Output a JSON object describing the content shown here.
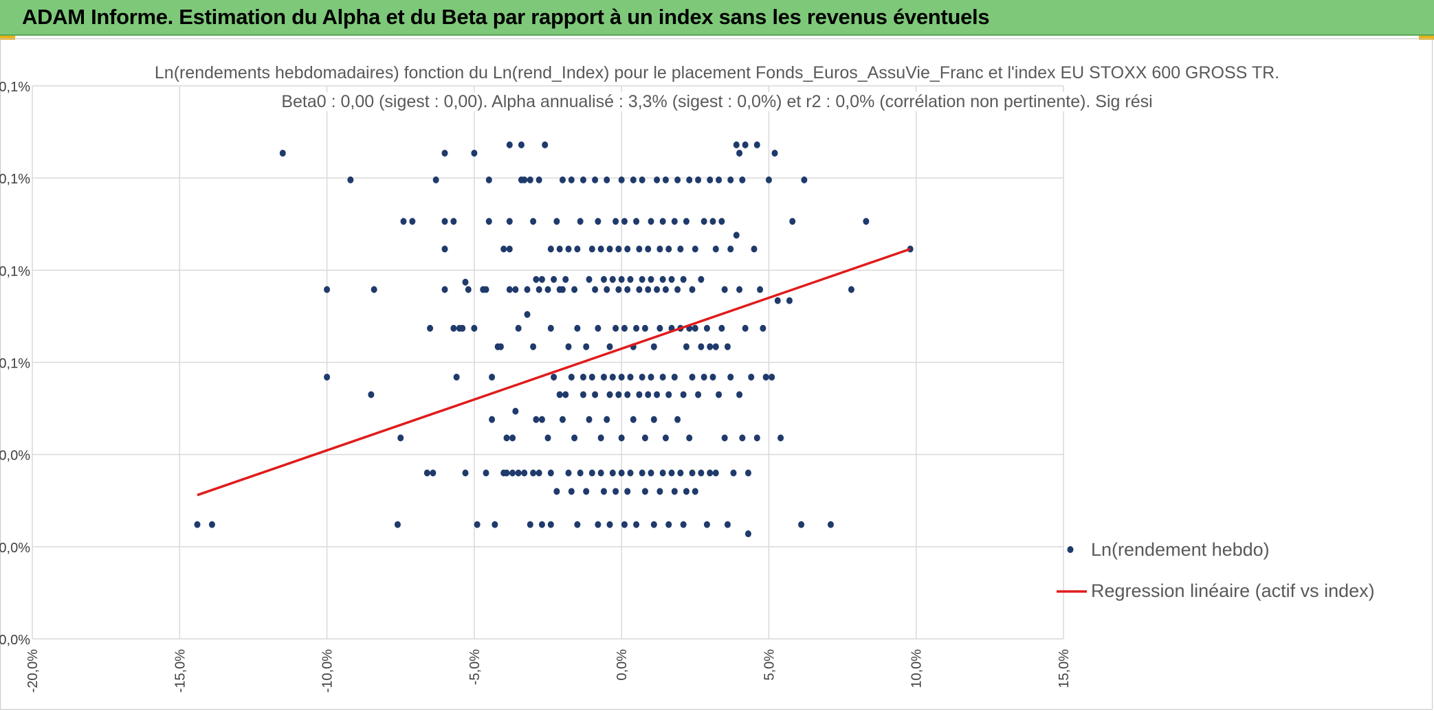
{
  "header": {
    "title": "ADAM Informe. Estimation du Alpha et du Beta par rapport à un index sans les revenus éventuels",
    "background": "#7ec87a"
  },
  "chart_data": {
    "type": "scatter",
    "title_line1": "Ln(rendements hebdomadaires) fonction du Ln(rend_Index) pour le placement Fonds_Euros_AssuVie_Franc et l'index EU STOXX 600 GROSS TR.",
    "title_line2": "Beta0 : 0,00 (sigest : 0,00). Alpha annualisé : 3,3% (sigest : 0,0%) et r2 : 0,0% (corrélation non pertinente). Sig rési",
    "xlim": [
      -20,
      15
    ],
    "ylim": [
      0,
      6
    ],
    "x_ticks": [
      -20,
      -15,
      -10,
      -5,
      0,
      5,
      10,
      15
    ],
    "x_tick_labels": [
      "-20,0%",
      "-15,0%",
      "-10,0%",
      "-5,0%",
      "0,0%",
      "5,0%",
      "10,0%",
      "15,0%"
    ],
    "y_ticks": [
      0,
      1,
      2,
      3,
      4,
      5,
      6
    ],
    "y_tick_labels": [
      "0,0%",
      "0,0%",
      "0,0%",
      "0,1%",
      "0,1%",
      "0,1%",
      "0,1%"
    ],
    "grid": true,
    "legend_position": "bottom-right",
    "series": [
      {
        "name": "Ln(rendement hebdo)",
        "kind": "scatter",
        "color": "#1f3a6b",
        "points": [
          [
            -11.5,
            5.27
          ],
          [
            -9.2,
            4.98
          ],
          [
            -14.4,
            1.24
          ],
          [
            -13.9,
            1.24
          ],
          [
            -10,
            3.79
          ],
          [
            -10,
            2.84
          ],
          [
            -8.4,
            3.79
          ],
          [
            -8.5,
            2.65
          ],
          [
            -7.5,
            2.18
          ],
          [
            -7.6,
            1.24
          ],
          [
            -7.4,
            4.53
          ],
          [
            -7.1,
            4.53
          ],
          [
            -6.6,
            1.8
          ],
          [
            -6.4,
            1.8
          ],
          [
            -6.5,
            3.37
          ],
          [
            -6.3,
            4.98
          ],
          [
            -6.0,
            5.27
          ],
          [
            -6.0,
            4.53
          ],
          [
            -6.0,
            4.23
          ],
          [
            -5.7,
            4.53
          ],
          [
            -6.0,
            3.79
          ],
          [
            -5.7,
            3.37
          ],
          [
            -5.6,
            2.84
          ],
          [
            -5.5,
            3.37
          ],
          [
            -5.4,
            3.37
          ],
          [
            -5.3,
            3.87
          ],
          [
            -5.2,
            3.79
          ],
          [
            -5.3,
            1.8
          ],
          [
            -5.0,
            5.27
          ],
          [
            -5.0,
            3.37
          ],
          [
            -4.9,
            1.24
          ],
          [
            -4.7,
            3.79
          ],
          [
            -4.6,
            3.79
          ],
          [
            -4.6,
            1.8
          ],
          [
            -4.5,
            4.98
          ],
          [
            -4.5,
            4.53
          ],
          [
            -4.4,
            2.84
          ],
          [
            -4.3,
            1.24
          ],
          [
            -4.4,
            2.38
          ],
          [
            -4.2,
            3.17
          ],
          [
            -4.1,
            3.17
          ],
          [
            -4.0,
            4.23
          ],
          [
            -4.0,
            1.8
          ],
          [
            -3.9,
            2.18
          ],
          [
            -3.9,
            1.8
          ],
          [
            -3.8,
            4.23
          ],
          [
            -3.8,
            3.79
          ],
          [
            -3.7,
            2.18
          ],
          [
            -3.7,
            1.8
          ],
          [
            -3.6,
            3.79
          ],
          [
            -3.6,
            2.47
          ],
          [
            -3.8,
            5.36
          ],
          [
            -3.8,
            4.53
          ],
          [
            -3.5,
            3.37
          ],
          [
            -3.5,
            1.8
          ],
          [
            -3.4,
            4.98
          ],
          [
            -3.4,
            5.36
          ],
          [
            -3.3,
            4.98
          ],
          [
            -3.3,
            1.8
          ],
          [
            -3.2,
            3.79
          ],
          [
            -3.2,
            3.52
          ],
          [
            -3.1,
            4.98
          ],
          [
            -3.1,
            1.24
          ],
          [
            -3.0,
            4.53
          ],
          [
            -3.0,
            3.17
          ],
          [
            -3.0,
            1.8
          ],
          [
            -2.9,
            3.9
          ],
          [
            -2.9,
            2.38
          ],
          [
            -2.8,
            3.79
          ],
          [
            -2.8,
            1.8
          ],
          [
            -2.8,
            4.98
          ],
          [
            -2.7,
            2.38
          ],
          [
            -2.7,
            3.9
          ],
          [
            -2.7,
            1.24
          ],
          [
            -2.6,
            5.36
          ],
          [
            -2.5,
            3.79
          ],
          [
            -2.5,
            2.18
          ],
          [
            -2.4,
            4.23
          ],
          [
            -2.4,
            3.37
          ],
          [
            -2.4,
            1.8
          ],
          [
            -2.4,
            1.24
          ],
          [
            -2.3,
            3.9
          ],
          [
            -2.3,
            2.84
          ],
          [
            -2.2,
            4.53
          ],
          [
            -2.2,
            1.6
          ],
          [
            -2.1,
            4.23
          ],
          [
            -2.1,
            3.79
          ],
          [
            -2.1,
            2.65
          ],
          [
            -2.0,
            4.98
          ],
          [
            -2.0,
            3.79
          ],
          [
            -2.0,
            2.38
          ],
          [
            -1.9,
            3.9
          ],
          [
            -1.9,
            2.65
          ],
          [
            -1.8,
            3.17
          ],
          [
            -1.8,
            4.23
          ],
          [
            -1.8,
            1.8
          ],
          [
            -1.7,
            2.84
          ],
          [
            -1.7,
            4.98
          ],
          [
            -1.7,
            1.6
          ],
          [
            -1.6,
            3.79
          ],
          [
            -1.6,
            2.18
          ],
          [
            -1.5,
            4.23
          ],
          [
            -1.5,
            3.37
          ],
          [
            -1.5,
            1.24
          ],
          [
            -1.4,
            4.53
          ],
          [
            -1.4,
            1.8
          ],
          [
            -1.3,
            2.84
          ],
          [
            -1.3,
            2.65
          ],
          [
            -1.3,
            4.98
          ],
          [
            -1.2,
            3.17
          ],
          [
            -1.2,
            1.6
          ],
          [
            -1.1,
            3.9
          ],
          [
            -1.1,
            2.38
          ],
          [
            -1.0,
            4.23
          ],
          [
            -1.0,
            2.84
          ],
          [
            -1.0,
            1.8
          ],
          [
            -0.9,
            4.98
          ],
          [
            -0.9,
            3.79
          ],
          [
            -0.9,
            2.65
          ],
          [
            -0.8,
            4.53
          ],
          [
            -0.8,
            3.37
          ],
          [
            -0.8,
            1.24
          ],
          [
            -0.7,
            4.23
          ],
          [
            -0.7,
            2.18
          ],
          [
            -0.7,
            1.8
          ],
          [
            -0.6,
            3.9
          ],
          [
            -0.6,
            2.84
          ],
          [
            -0.6,
            1.6
          ],
          [
            -0.5,
            4.98
          ],
          [
            -0.5,
            3.79
          ],
          [
            -0.5,
            2.38
          ],
          [
            -0.4,
            4.23
          ],
          [
            -0.4,
            3.17
          ],
          [
            -0.4,
            2.65
          ],
          [
            -0.4,
            1.24
          ],
          [
            -0.3,
            3.9
          ],
          [
            -0.3,
            2.84
          ],
          [
            -0.3,
            1.8
          ],
          [
            -0.2,
            4.53
          ],
          [
            -0.2,
            3.37
          ],
          [
            -0.2,
            1.6
          ],
          [
            -0.1,
            4.23
          ],
          [
            -0.1,
            3.79
          ],
          [
            -0.1,
            2.65
          ],
          [
            0.0,
            4.98
          ],
          [
            0.0,
            3.9
          ],
          [
            0.0,
            2.84
          ],
          [
            0.0,
            2.18
          ],
          [
            0.0,
            1.8
          ],
          [
            0.1,
            4.53
          ],
          [
            0.1,
            3.37
          ],
          [
            0.1,
            1.24
          ],
          [
            0.2,
            4.23
          ],
          [
            0.2,
            3.79
          ],
          [
            0.2,
            2.65
          ],
          [
            0.2,
            1.6
          ],
          [
            0.3,
            3.9
          ],
          [
            0.3,
            2.84
          ],
          [
            0.3,
            1.8
          ],
          [
            0.4,
            4.98
          ],
          [
            0.4,
            3.17
          ],
          [
            0.4,
            2.38
          ],
          [
            0.5,
            4.53
          ],
          [
            0.5,
            3.37
          ],
          [
            0.5,
            1.24
          ],
          [
            0.6,
            4.23
          ],
          [
            0.6,
            3.79
          ],
          [
            0.6,
            2.65
          ],
          [
            0.7,
            4.98
          ],
          [
            0.7,
            3.9
          ],
          [
            0.7,
            2.84
          ],
          [
            0.7,
            1.8
          ],
          [
            0.8,
            3.37
          ],
          [
            0.8,
            2.18
          ],
          [
            0.8,
            1.6
          ],
          [
            0.9,
            4.23
          ],
          [
            0.9,
            3.79
          ],
          [
            0.9,
            2.65
          ],
          [
            1.0,
            4.53
          ],
          [
            1.0,
            3.9
          ],
          [
            1.0,
            2.84
          ],
          [
            1.0,
            1.8
          ],
          [
            1.1,
            3.17
          ],
          [
            1.1,
            2.38
          ],
          [
            1.1,
            1.24
          ],
          [
            1.2,
            4.98
          ],
          [
            1.2,
            3.79
          ],
          [
            1.2,
            2.65
          ],
          [
            1.3,
            4.23
          ],
          [
            1.3,
            3.37
          ],
          [
            1.3,
            1.6
          ],
          [
            1.4,
            4.53
          ],
          [
            1.4,
            3.9
          ],
          [
            1.4,
            2.84
          ],
          [
            1.4,
            1.8
          ],
          [
            1.5,
            4.98
          ],
          [
            1.5,
            3.79
          ],
          [
            1.5,
            2.18
          ],
          [
            1.6,
            4.23
          ],
          [
            1.6,
            2.65
          ],
          [
            1.6,
            1.24
          ],
          [
            1.7,
            3.9
          ],
          [
            1.7,
            3.37
          ],
          [
            1.7,
            1.8
          ],
          [
            1.8,
            4.53
          ],
          [
            1.8,
            2.84
          ],
          [
            1.8,
            1.6
          ],
          [
            1.9,
            4.98
          ],
          [
            1.9,
            3.79
          ],
          [
            1.9,
            2.38
          ],
          [
            2.0,
            4.23
          ],
          [
            2.0,
            3.37
          ],
          [
            2.0,
            1.8
          ],
          [
            2.1,
            3.9
          ],
          [
            2.1,
            2.65
          ],
          [
            2.1,
            1.24
          ],
          [
            2.2,
            4.53
          ],
          [
            2.2,
            3.17
          ],
          [
            2.2,
            1.6
          ],
          [
            2.3,
            4.98
          ],
          [
            2.3,
            3.37
          ],
          [
            2.3,
            2.18
          ],
          [
            2.4,
            3.79
          ],
          [
            2.4,
            2.84
          ],
          [
            2.4,
            1.8
          ],
          [
            2.5,
            4.23
          ],
          [
            2.5,
            3.37
          ],
          [
            2.5,
            1.6
          ],
          [
            2.6,
            4.98
          ],
          [
            2.6,
            2.65
          ],
          [
            2.7,
            3.9
          ],
          [
            2.7,
            3.17
          ],
          [
            2.7,
            1.8
          ],
          [
            2.8,
            4.53
          ],
          [
            2.8,
            2.84
          ],
          [
            2.9,
            3.37
          ],
          [
            2.9,
            1.24
          ],
          [
            3.0,
            4.98
          ],
          [
            3.0,
            3.17
          ],
          [
            3.0,
            1.8
          ],
          [
            3.1,
            4.53
          ],
          [
            3.1,
            2.84
          ],
          [
            3.2,
            4.23
          ],
          [
            3.2,
            3.17
          ],
          [
            3.2,
            1.8
          ],
          [
            3.3,
            4.98
          ],
          [
            3.3,
            2.65
          ],
          [
            3.4,
            4.53
          ],
          [
            3.4,
            3.37
          ],
          [
            3.5,
            3.79
          ],
          [
            3.5,
            2.18
          ],
          [
            3.6,
            3.17
          ],
          [
            3.6,
            1.24
          ],
          [
            3.7,
            4.98
          ],
          [
            3.7,
            4.23
          ],
          [
            3.7,
            2.84
          ],
          [
            3.8,
            1.8
          ],
          [
            3.9,
            5.36
          ],
          [
            3.9,
            4.38
          ],
          [
            4.0,
            5.27
          ],
          [
            4.0,
            3.79
          ],
          [
            4.0,
            2.65
          ],
          [
            4.1,
            4.98
          ],
          [
            4.1,
            2.18
          ],
          [
            4.2,
            5.36
          ],
          [
            4.2,
            3.37
          ],
          [
            4.3,
            1.8
          ],
          [
            4.3,
            1.14
          ],
          [
            4.4,
            2.84
          ],
          [
            4.5,
            4.23
          ],
          [
            4.6,
            5.36
          ],
          [
            4.6,
            2.18
          ],
          [
            4.7,
            3.79
          ],
          [
            4.8,
            3.37
          ],
          [
            4.9,
            2.84
          ],
          [
            5.0,
            4.98
          ],
          [
            5.1,
            2.84
          ],
          [
            5.2,
            5.27
          ],
          [
            5.3,
            3.67
          ],
          [
            5.4,
            2.18
          ],
          [
            5.7,
            3.67
          ],
          [
            5.8,
            4.53
          ],
          [
            6.1,
            1.24
          ],
          [
            6.2,
            4.98
          ],
          [
            7.1,
            1.24
          ],
          [
            7.8,
            3.79
          ],
          [
            8.3,
            4.53
          ],
          [
            9.8,
            4.23
          ]
        ]
      },
      {
        "name": "Regression linéaire (actif vs index)",
        "kind": "line",
        "color": "#e01b1b",
        "points": [
          [
            -14.4,
            1.56
          ],
          [
            9.8,
            4.23
          ]
        ]
      }
    ]
  }
}
